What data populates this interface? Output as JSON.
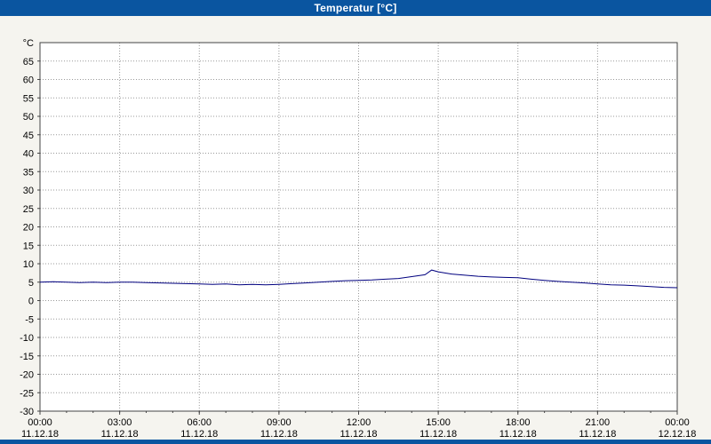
{
  "window": {
    "title": "Temperatur [°C]"
  },
  "colors": {
    "titlebar": "#0a55a0",
    "background": "#f5f4ef",
    "plot_background": "#ffffff",
    "grid": "#999999",
    "axis": "#444444",
    "line": "#00007f"
  },
  "chart_data": {
    "type": "line",
    "title": "Temperatur [°C]",
    "grid": true,
    "legend": "none",
    "y_axis": {
      "unit_label": "°C",
      "min": -30,
      "max": 70,
      "tick_step": 5,
      "tick_labels": [
        65,
        60,
        55,
        50,
        45,
        40,
        35,
        30,
        25,
        20,
        15,
        10,
        5,
        0,
        -5,
        -10,
        -15,
        -20,
        -25,
        -30
      ]
    },
    "x_axis": {
      "min_hour": 0,
      "max_hour": 24,
      "ticks": [
        {
          "hour": 0,
          "time": "00:00",
          "date": "11.12.18"
        },
        {
          "hour": 3,
          "time": "03:00",
          "date": "11.12.18"
        },
        {
          "hour": 6,
          "time": "06:00",
          "date": "11.12.18"
        },
        {
          "hour": 9,
          "time": "09:00",
          "date": "11.12.18"
        },
        {
          "hour": 12,
          "time": "12:00",
          "date": "11.12.18"
        },
        {
          "hour": 15,
          "time": "15:00",
          "date": "11.12.18"
        },
        {
          "hour": 18,
          "time": "18:00",
          "date": "11.12.18"
        },
        {
          "hour": 21,
          "time": "21:00",
          "date": "11.12.18"
        },
        {
          "hour": 24,
          "time": "00:00",
          "date": "12.12.18"
        }
      ]
    },
    "series": [
      {
        "name": "Temperatur",
        "color": "#00007f",
        "points": [
          [
            0,
            5.0
          ],
          [
            0.5,
            5.1
          ],
          [
            1,
            5.0
          ],
          [
            1.5,
            4.9
          ],
          [
            2,
            5.0
          ],
          [
            2.5,
            4.9
          ],
          [
            3,
            5.0
          ],
          [
            3.5,
            5.0
          ],
          [
            4,
            4.9
          ],
          [
            4.5,
            4.8
          ],
          [
            5,
            4.7
          ],
          [
            5.5,
            4.6
          ],
          [
            6,
            4.5
          ],
          [
            6.5,
            4.4
          ],
          [
            7,
            4.5
          ],
          [
            7.5,
            4.3
          ],
          [
            8,
            4.4
          ],
          [
            8.5,
            4.3
          ],
          [
            9,
            4.4
          ],
          [
            9.5,
            4.6
          ],
          [
            10,
            4.8
          ],
          [
            10.5,
            5.0
          ],
          [
            11,
            5.2
          ],
          [
            11.5,
            5.4
          ],
          [
            12,
            5.5
          ],
          [
            12.5,
            5.6
          ],
          [
            13,
            5.8
          ],
          [
            13.5,
            6.0
          ],
          [
            14,
            6.5
          ],
          [
            14.5,
            7.0
          ],
          [
            14.75,
            8.3
          ],
          [
            15,
            7.8
          ],
          [
            15.5,
            7.2
          ],
          [
            16,
            6.9
          ],
          [
            16.5,
            6.6
          ],
          [
            17,
            6.4
          ],
          [
            17.5,
            6.3
          ],
          [
            18,
            6.2
          ],
          [
            18.5,
            5.8
          ],
          [
            19,
            5.5
          ],
          [
            19.5,
            5.2
          ],
          [
            20,
            5.0
          ],
          [
            20.5,
            4.8
          ],
          [
            21,
            4.5
          ],
          [
            21.5,
            4.3
          ],
          [
            22,
            4.2
          ],
          [
            22.5,
            4.0
          ],
          [
            23,
            3.8
          ],
          [
            23.5,
            3.6
          ],
          [
            24,
            3.5
          ]
        ]
      }
    ]
  }
}
